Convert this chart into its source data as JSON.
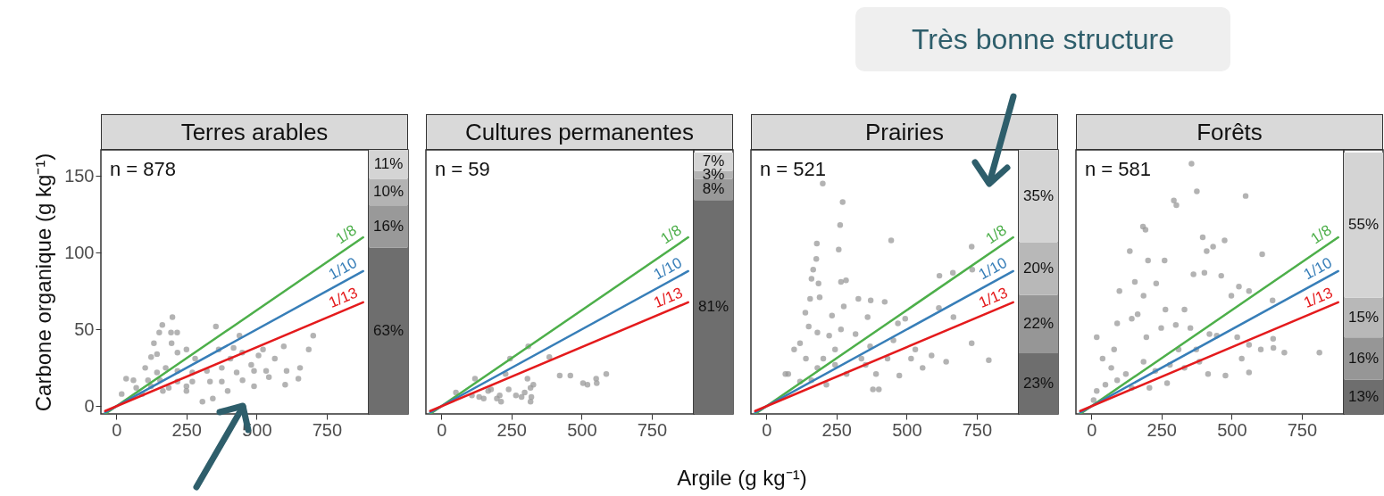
{
  "chart_data": [
    {
      "type": "scatter",
      "title": "Terres arables",
      "ylabel": "Carbone organique (g kg⁻¹)",
      "annotations": [
        "n = 878"
      ],
      "xlim": [
        -55,
        900
      ],
      "xticks": [
        0,
        250,
        500,
        750
      ],
      "ylim": [
        -5,
        167
      ],
      "yticks": [
        0,
        50,
        100,
        150
      ],
      "grid": false,
      "series": [
        {
          "type": "scatter",
          "marker": "circle",
          "color": "#9a9a9a",
          "x": [
            200,
            164,
            153,
            195,
            217,
            355,
            439,
            702,
            686,
            597,
            523,
            124,
            35,
            61,
            19,
            92,
            145,
            176,
            218,
            271,
            323,
            376,
            429,
            481,
            534,
            565,
            607,
            649,
            655,
            602,
            491,
            307,
            344,
            397,
            250,
            187,
            156,
            113,
            145,
            250,
            218,
            418,
            365,
            507,
            281,
            71,
            450,
            491,
            197,
            134,
            103,
            218,
            250,
            334,
            271,
            376,
            124,
            166,
            407,
            449,
            544
          ],
          "values": [
            58,
            53,
            48,
            48,
            48,
            52,
            46,
            46,
            37,
            39,
            37,
            32,
            18,
            17,
            8,
            8,
            22,
            25,
            23,
            22,
            23,
            25,
            22,
            27,
            23,
            31,
            23,
            18,
            25,
            14,
            13,
            3,
            5,
            10,
            10,
            12,
            17,
            17,
            34,
            37,
            35,
            38,
            37,
            33,
            31,
            12,
            17,
            23,
            41,
            41,
            25,
            16,
            13,
            16,
            16,
            16,
            13,
            10,
            31,
            35,
            19
          ]
        },
        {
          "type": "line",
          "name": "1/8",
          "color": "#4daf4a",
          "x": [
            -40,
            880
          ],
          "values": [
            -5,
            110
          ]
        },
        {
          "type": "line",
          "name": "1/10",
          "color": "#377eb8",
          "x": [
            -40,
            880
          ],
          "values": [
            -4,
            88
          ]
        },
        {
          "type": "line",
          "name": "1/13",
          "color": "#e41a1c",
          "x": [
            -40,
            880
          ],
          "values": [
            -3.1,
            67.7
          ]
        }
      ]
    },
    {
      "type": "bar",
      "stacked": true,
      "categories": [
        null
      ],
      "ylim": [
        0,
        100
      ],
      "tick_labels": false,
      "series": [
        {
          "color": "#6e6e6e",
          "values": [
            63
          ],
          "value_labels": [
            "63%"
          ]
        },
        {
          "color": "#999999",
          "values": [
            16
          ],
          "value_labels": [
            "16%"
          ]
        },
        {
          "color": "#b3b3b3",
          "values": [
            10
          ],
          "value_labels": [
            "10%"
          ]
        },
        {
          "color": "#d4d4d4",
          "values": [
            11
          ],
          "value_labels": [
            "11%"
          ]
        }
      ]
    },
    {
      "type": "scatter",
      "title": "Cultures permanentes",
      "xlabel": "Argile (g kg⁻¹)",
      "annotations": [
        "n = 59"
      ],
      "xlim": [
        -55,
        900
      ],
      "xticks": [
        0,
        250,
        500,
        750
      ],
      "ylim": [
        -5,
        167
      ],
      "yticks": [
        0,
        50,
        100,
        150
      ],
      "tick_labels": "x",
      "grid": false,
      "series": [
        {
          "type": "scatter",
          "marker": "circle",
          "color": "#9a9a9a",
          "x": [
            310,
            385,
            245,
            120,
            52,
            109,
            135,
            167,
            177,
            208,
            213,
            198,
            240,
            266,
            297,
            307,
            328,
            318,
            321,
            318,
            229,
            422,
            460,
            505,
            521,
            552,
            554,
            588,
            151,
            286
          ],
          "values": [
            39,
            32,
            31,
            18,
            9,
            7,
            6,
            10,
            11,
            7,
            3,
            5,
            11,
            7,
            9,
            18,
            14,
            12,
            6,
            3,
            21,
            20,
            20,
            15,
            14,
            18,
            15,
            21,
            5,
            6
          ]
        },
        {
          "type": "line",
          "name": "1/8",
          "color": "#4daf4a",
          "x": [
            -40,
            880
          ],
          "values": [
            -5,
            110
          ]
        },
        {
          "type": "line",
          "name": "1/10",
          "color": "#377eb8",
          "x": [
            -40,
            880
          ],
          "values": [
            -4,
            88
          ]
        },
        {
          "type": "line",
          "name": "1/13",
          "color": "#e41a1c",
          "x": [
            -40,
            880
          ],
          "values": [
            -3.1,
            67.7
          ]
        }
      ]
    },
    {
      "type": "bar",
      "stacked": true,
      "categories": [
        null
      ],
      "ylim": [
        0,
        100
      ],
      "tick_labels": false,
      "series": [
        {
          "color": "#6e6e6e",
          "values": [
            81
          ],
          "value_labels": [
            "81%"
          ]
        },
        {
          "color": "#999999",
          "values": [
            8
          ],
          "value_labels": [
            "8%"
          ]
        },
        {
          "color": "#b3b3b3",
          "values": [
            3
          ],
          "value_labels": [
            "3%"
          ]
        },
        {
          "color": "#d4d4d4",
          "values": [
            7
          ],
          "value_labels": [
            "7%"
          ]
        }
      ]
    },
    {
      "type": "scatter",
      "title": "Prairies",
      "annotations": [
        "n = 521",
        "Très bonne structure"
      ],
      "xlim": [
        -55,
        900
      ],
      "xticks": [
        0,
        250,
        500,
        750
      ],
      "ylim": [
        -5,
        167
      ],
      "yticks": [
        0,
        50,
        100,
        150
      ],
      "tick_labels": "x",
      "grid": false,
      "series": [
        {
          "type": "scatter",
          "marker": "circle",
          "color": "#9a9a9a",
          "x": [
            201,
            272,
            263,
            445,
            180,
            258,
            178,
            167,
            161,
            186,
            266,
            284,
            156,
            190,
            328,
            372,
            276,
            139,
            234,
            361,
            732,
            734,
            617,
            665,
            615,
            667,
            495,
            469,
            422,
            732,
            793,
            641,
            589,
            531,
            151,
            182,
            224,
            266,
            318,
            120,
            99,
            141,
            182,
            203,
            245,
            286,
            354,
            391,
            432,
            474,
            380,
            401,
            78,
            120,
            161,
            214,
            516,
            557,
            245,
            370,
            453,
            339,
            68
          ],
          "values": [
            145,
            133,
            118,
            108,
            106,
            102,
            96,
            89,
            83,
            80,
            81,
            82,
            70,
            71,
            70,
            69,
            65,
            61,
            59,
            58,
            104,
            89,
            85,
            87,
            64,
            58,
            57,
            54,
            68,
            41,
            30,
            29,
            33,
            37,
            52,
            48,
            46,
            50,
            47,
            41,
            37,
            31,
            25,
            31,
            27,
            21,
            27,
            21,
            31,
            20,
            11,
            11,
            21,
            16,
            17,
            14,
            31,
            25,
            37,
            39,
            43,
            31,
            21
          ]
        },
        {
          "type": "line",
          "name": "1/8",
          "color": "#4daf4a",
          "x": [
            -40,
            880
          ],
          "values": [
            -5,
            110
          ]
        },
        {
          "type": "line",
          "name": "1/10",
          "color": "#377eb8",
          "x": [
            -40,
            880
          ],
          "values": [
            -4,
            88
          ]
        },
        {
          "type": "line",
          "name": "1/13",
          "color": "#e41a1c",
          "x": [
            -40,
            880
          ],
          "values": [
            -3.1,
            67.7
          ]
        }
      ]
    },
    {
      "type": "bar",
      "stacked": true,
      "categories": [
        null
      ],
      "ylim": [
        0,
        100
      ],
      "tick_labels": false,
      "series": [
        {
          "color": "#6e6e6e",
          "values": [
            23
          ],
          "value_labels": [
            "23%"
          ]
        },
        {
          "color": "#969696",
          "values": [
            22
          ],
          "value_labels": [
            "22%"
          ]
        },
        {
          "color": "#b8b8b8",
          "values": [
            20
          ],
          "value_labels": [
            "20%"
          ]
        },
        {
          "color": "#d4d4d4",
          "values": [
            35
          ],
          "value_labels": [
            "35%"
          ]
        }
      ]
    },
    {
      "type": "scatter",
      "title": "Forêts",
      "annotations": [
        "n = 581"
      ],
      "xlim": [
        -55,
        900
      ],
      "xticks": [
        0,
        250,
        500,
        750
      ],
      "ylim": [
        -5,
        167
      ],
      "yticks": [
        0,
        50,
        100,
        150
      ],
      "tick_labels": "x",
      "grid": false,
      "series": [
        {
          "type": "scatter",
          "marker": "circle",
          "color": "#9a9a9a",
          "x": [
            357,
            376,
            550,
            294,
            303,
            184,
            193,
            397,
            475,
            434,
            411,
            609,
            137,
            202,
            261,
            364,
            403,
            463,
            526,
            562,
            499,
            646,
            155,
            231,
            100,
            186,
            264,
            332,
            165,
            92,
            19,
            648,
            649,
            688,
            813,
            447,
            421,
            520,
            562,
            604,
            536,
            562,
            478,
            144,
            196,
            249,
            301,
            353,
            40,
            71,
            123,
            186,
            228,
            280,
            332,
            385,
            416,
            19,
            50,
            92,
            144,
            207,
            270,
            8,
            81,
            311,
            374
          ],
          "values": [
            158,
            140,
            137,
            134,
            131,
            117,
            115,
            110,
            108,
            104,
            101,
            99,
            101,
            95,
            95,
            86,
            87,
            85,
            78,
            75,
            72,
            69,
            81,
            80,
            75,
            72,
            63,
            63,
            60,
            54,
            45,
            44,
            38,
            35,
            35,
            46,
            47,
            45,
            40,
            37,
            31,
            22,
            20,
            57,
            45,
            51,
            53,
            51,
            31,
            25,
            21,
            29,
            23,
            27,
            25,
            29,
            21,
            10,
            14,
            17,
            12,
            12,
            15,
            4,
            37,
            37,
            37
          ]
        },
        {
          "type": "line",
          "name": "1/8",
          "color": "#4daf4a",
          "x": [
            -40,
            880
          ],
          "values": [
            -5,
            110
          ]
        },
        {
          "type": "line",
          "name": "1/10",
          "color": "#377eb8",
          "x": [
            -40,
            880
          ],
          "values": [
            -4,
            88
          ]
        },
        {
          "type": "line",
          "name": "1/13",
          "color": "#e41a1c",
          "x": [
            -40,
            880
          ],
          "values": [
            -3.1,
            67.7
          ]
        }
      ]
    },
    {
      "type": "bar",
      "stacked": true,
      "categories": [
        null
      ],
      "ylim": [
        0,
        100
      ],
      "tick_labels": false,
      "series": [
        {
          "color": "#6e6e6e",
          "values": [
            13
          ],
          "value_labels": [
            "13%"
          ]
        },
        {
          "color": "#969696",
          "values": [
            16
          ],
          "value_labels": [
            "16%"
          ]
        },
        {
          "color": "#b8b8b8",
          "values": [
            15
          ],
          "value_labels": [
            "15%"
          ]
        },
        {
          "color": "#d4d4d4",
          "values": [
            55
          ],
          "value_labels": [
            "55%"
          ]
        }
      ]
    }
  ]
}
